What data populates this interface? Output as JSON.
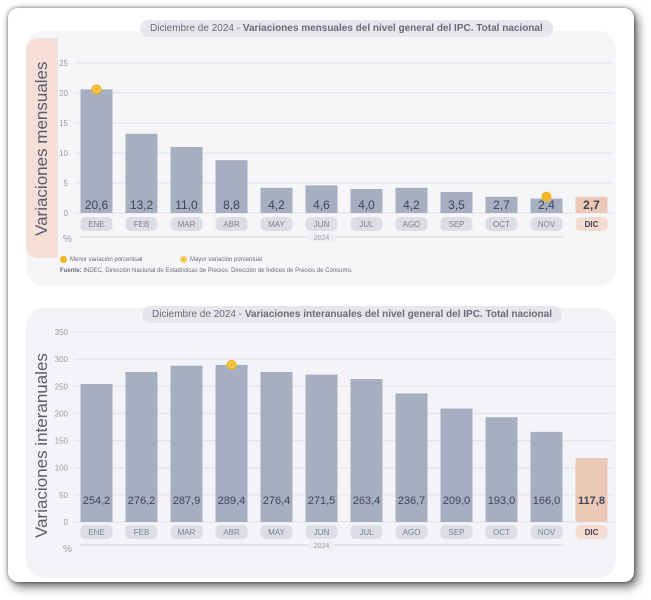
{
  "chart_data": [
    {
      "type": "bar",
      "title": "Diciembre de 2024 - Variaciones mensuales del nivel general del IPC. Total nacional",
      "title_prefix": "Diciembre de 2024 - ",
      "title_main": "Variaciones mensuales del nivel general del IPC. Total nacional",
      "ylabel": "Variaciones mensuales",
      "unit": "%",
      "year_label": "2024",
      "categories": [
        "ENE",
        "FEB",
        "MAR",
        "ABR",
        "MAY",
        "JUN",
        "JUL",
        "AGO",
        "SEP",
        "OCT",
        "NOV",
        "DIC"
      ],
      "values": [
        20.6,
        13.2,
        11.0,
        8.8,
        4.2,
        4.6,
        4.0,
        4.2,
        3.5,
        2.7,
        2.4,
        2.7
      ],
      "value_labels": [
        "20,6",
        "13,2",
        "11,0",
        "8,8",
        "4,2",
        "4,6",
        "4,0",
        "4,2",
        "3,5",
        "2,7",
        "2,4",
        "2,7"
      ],
      "yticks": [
        0,
        5,
        10,
        15,
        20,
        25
      ],
      "ylim": [
        0,
        25
      ],
      "highlight_index": 11,
      "markers": [
        {
          "index": 0,
          "kind": "mayor"
        },
        {
          "index": 10,
          "kind": "menor"
        }
      ],
      "bar_color": "#a6afbf",
      "highlight_color": "#ecc8b6",
      "grid": true
    },
    {
      "type": "bar",
      "title": "Diciembre de 2024 - Variaciones interanuales del nivel general del IPC. Total nacional",
      "title_prefix": "Diciembre de 2024 - ",
      "title_main": "Variaciones interanuales del nivel general del IPC. Total nacional",
      "ylabel": "Variaciones interanuales",
      "unit": "%",
      "year_label": "2024",
      "categories": [
        "ENE",
        "FEB",
        "MAR",
        "ABR",
        "MAY",
        "JUN",
        "JUL",
        "AGO",
        "SEP",
        "OCT",
        "NOV",
        "DIC"
      ],
      "values": [
        254.2,
        276.2,
        287.9,
        289.4,
        276.4,
        271.5,
        263.4,
        236.7,
        209.0,
        193.0,
        166.0,
        117.8
      ],
      "value_labels": [
        "254,2",
        "276,2",
        "287,9",
        "289,4",
        "276,4",
        "271,5",
        "263,4",
        "236,7",
        "209,0",
        "193,0",
        "166,0",
        "117,8"
      ],
      "yticks": [
        0,
        50,
        100,
        150,
        200,
        250,
        300,
        350
      ],
      "ylim": [
        0,
        350
      ],
      "highlight_index": 11,
      "markers": [
        {
          "index": 3,
          "kind": "mayor"
        }
      ],
      "bar_color": "#a6afbf",
      "highlight_color": "#ecc8b6",
      "grid": true
    }
  ],
  "legend": {
    "menor": "Menor variación porcentual",
    "mayor": "Mayor variación porcentual"
  },
  "source": {
    "label": "Fuente:",
    "text": " INDEC, Dirección Nacional de Estadísticas de Precios. Dirección de Índices de Precios de Consumo."
  },
  "colors": {
    "marker": "#f4b51f",
    "axis_text": "#9a9aa6",
    "value_text": "#3f4556"
  }
}
